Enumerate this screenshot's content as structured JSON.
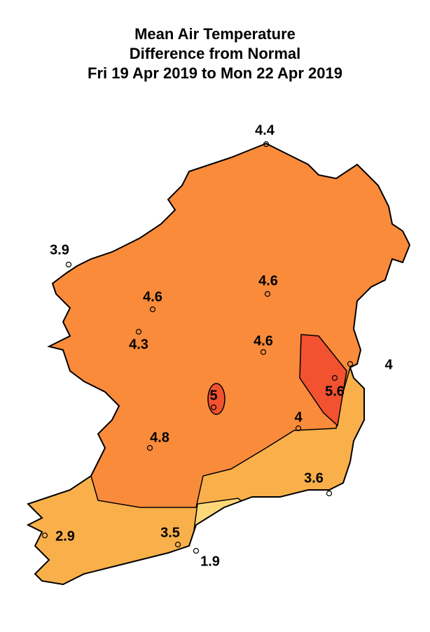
{
  "title": [
    "Mean Air Temperature",
    "Difference from Normal",
    "Fri 19 Apr 2019 to Mon 22 Apr 2019"
  ],
  "stations": [
    4.4,
    3.9,
    4.6,
    4.6,
    4.3,
    4.6,
    5,
    5.6,
    4,
    4,
    4.8,
    3.6,
    2.9,
    3.5,
    1.9
  ]
}
